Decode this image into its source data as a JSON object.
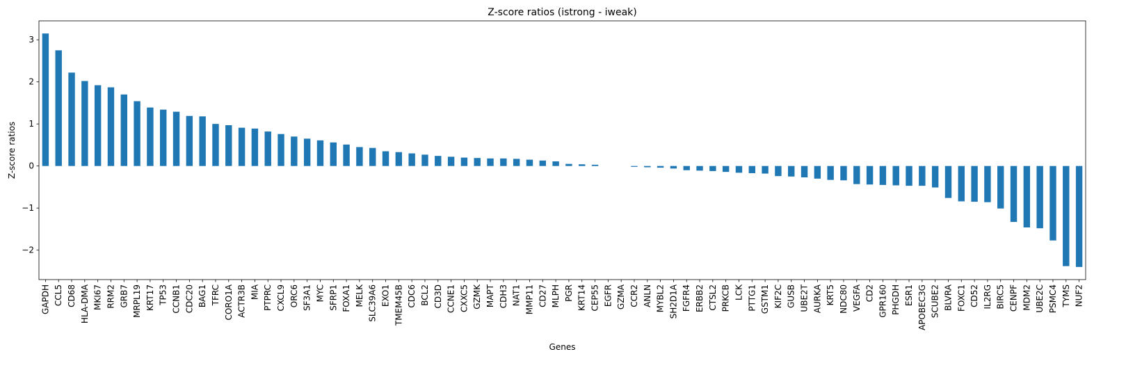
{
  "chart_data": {
    "type": "bar",
    "title": "Z-score ratios (istrong - iweak)",
    "xlabel": "Genes",
    "ylabel": "Z-score ratios",
    "ylim": [
      -2.7,
      3.45
    ],
    "yticks": [
      -2,
      -1,
      0,
      1,
      2,
      3
    ],
    "grid": false,
    "bar_color": "#1f77b4",
    "categories": [
      "GAPDH",
      "CCL5",
      "CD68",
      "HLA-DMA",
      "MKI67",
      "RRM2",
      "GRB7",
      "MRPL19",
      "KRT17",
      "TP53",
      "CCNB1",
      "CDC20",
      "BAG1",
      "TFRC",
      "CORO1A",
      "ACTR3B",
      "MIA",
      "PTPRC",
      "CXCL9",
      "ORC6",
      "SF3A1",
      "MYC",
      "SFRP1",
      "FOXA1",
      "MELK",
      "SLC39A6",
      "EXO1",
      "TMEM45B",
      "CDC6",
      "BCL2",
      "CD3D",
      "CCNE1",
      "CXXC5",
      "GZMK",
      "MAPT",
      "CDH3",
      "NAT1",
      "MMP11",
      "CD27",
      "MLPH",
      "PGR",
      "KRT14",
      "CEP55",
      "EGFR",
      "GZMA",
      "CCR2",
      "ANLN",
      "MYBL2",
      "SH2D1A",
      "FGFR4",
      "ERBB2",
      "CTSL2",
      "PRKCB",
      "LCK",
      "PTTG1",
      "GSTM1",
      "KIF2C",
      "GUSB",
      "UBE2T",
      "AURKA",
      "KRT5",
      "NDC80",
      "VEGFA",
      "CD2",
      "GPR160",
      "PHGDH",
      "ESR1",
      "APOBEC3G",
      "SCUBE2",
      "BLVRA",
      "FOXC1",
      "CD52",
      "IL2RG",
      "BIRC5",
      "CENPF",
      "MDM2",
      "UBE2C",
      "PSMC4",
      "TYMS",
      "NUF2"
    ],
    "values": [
      3.15,
      2.75,
      2.22,
      2.02,
      1.92,
      1.87,
      1.7,
      1.54,
      1.39,
      1.34,
      1.29,
      1.19,
      1.18,
      1.0,
      0.97,
      0.91,
      0.89,
      0.82,
      0.76,
      0.7,
      0.65,
      0.61,
      0.56,
      0.51,
      0.45,
      0.43,
      0.35,
      0.33,
      0.3,
      0.27,
      0.24,
      0.22,
      0.2,
      0.19,
      0.18,
      0.18,
      0.17,
      0.15,
      0.13,
      0.11,
      0.05,
      0.04,
      0.03,
      0.0,
      0.0,
      -0.02,
      -0.03,
      -0.04,
      -0.06,
      -0.1,
      -0.11,
      -0.12,
      -0.14,
      -0.16,
      -0.17,
      -0.18,
      -0.24,
      -0.25,
      -0.27,
      -0.3,
      -0.33,
      -0.34,
      -0.43,
      -0.44,
      -0.45,
      -0.46,
      -0.47,
      -0.47,
      -0.51,
      -0.76,
      -0.84,
      -0.85,
      -0.86,
      -1.01,
      -1.33,
      -1.46,
      -1.48,
      -1.77,
      -2.38,
      -2.4
    ]
  }
}
